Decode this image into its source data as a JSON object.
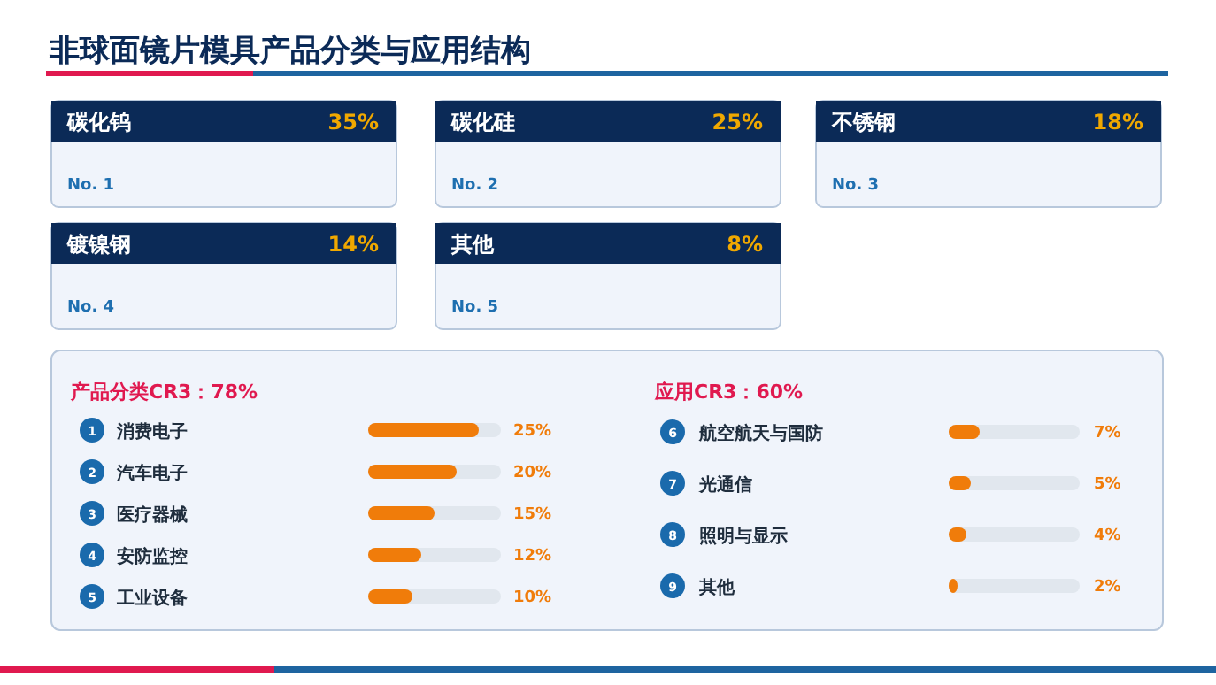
{
  "chart_data": [
    {
      "type": "other",
      "title": "非球面镜片模具产品分类与应用结构",
      "annotations": [
        "碳化钨",
        "35%",
        "No. 1",
        "碳化硅",
        "25%",
        "No. 2",
        "不锈钢",
        "18%",
        "No. 3",
        "镀镍钢",
        "14%",
        "No. 4",
        "其他",
        "8%",
        "No. 5"
      ],
      "color": "#0b2a57"
    },
    {
      "type": "bar",
      "orientation": "horizontal",
      "title": "产品分类CR3：78%",
      "categories": [
        "消费电子",
        "汽车电子",
        "医疗器械",
        "安防监控",
        "工业设备"
      ],
      "values": [
        25,
        20,
        15,
        12,
        10
      ],
      "value_labels": [
        "25%",
        "20%",
        "15%",
        "12%",
        "10%"
      ],
      "color": "#f07c0a",
      "tick_labels": "y",
      "annotations": [
        "1",
        "2",
        "3",
        "4",
        "5"
      ]
    },
    {
      "type": "bar",
      "orientation": "horizontal",
      "title": "应用CR3：60%",
      "categories": [
        "航空航天与国防",
        "光通信",
        "照明与显示",
        "其他"
      ],
      "values": [
        7,
        5,
        4,
        2
      ],
      "value_labels": [
        "7%",
        "5%",
        "4%",
        "2%"
      ],
      "color": "#f07c0a",
      "tick_labels": "y",
      "annotations": [
        "6",
        "7",
        "8",
        "9"
      ]
    }
  ]
}
